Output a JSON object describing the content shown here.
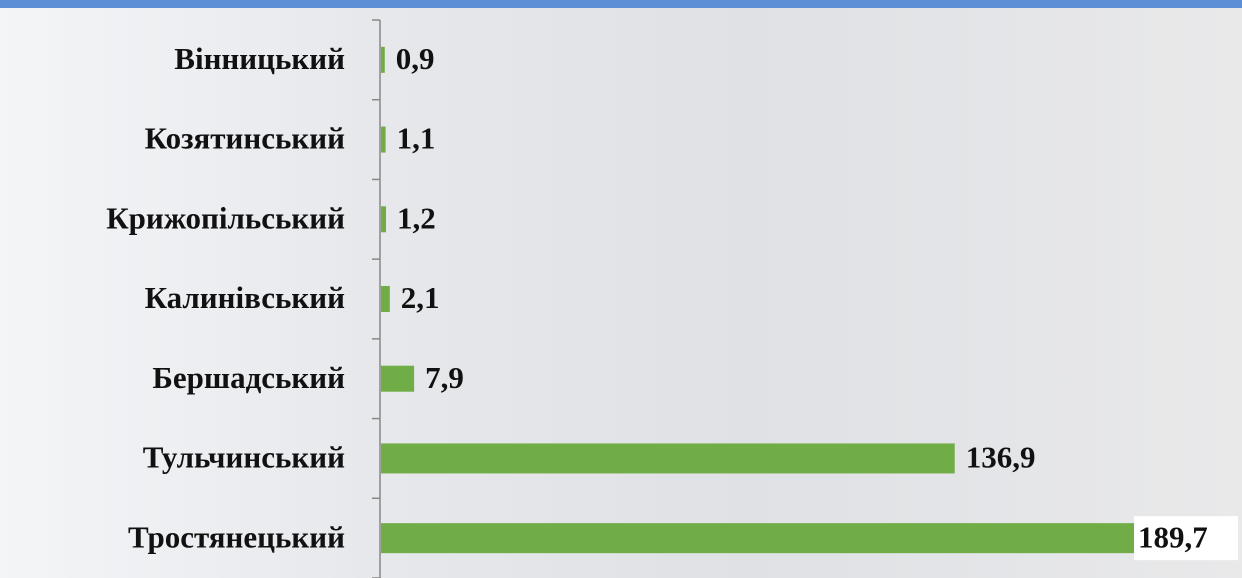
{
  "chart_data": {
    "type": "bar",
    "orientation": "horizontal",
    "categories": [
      "Вінницький",
      "Козятинський",
      "Крижопільський",
      "Калинівський",
      "Бершадський",
      "Тульчинський",
      "Тростянецький"
    ],
    "values": [
      0.9,
      1.1,
      1.2,
      2.1,
      7.9,
      136.9,
      189.7
    ],
    "value_labels": [
      "0,9",
      "1,1",
      "1,2",
      "2,1",
      "7,9",
      "136,9",
      "189,7"
    ],
    "color": "#70ad47"
  }
}
